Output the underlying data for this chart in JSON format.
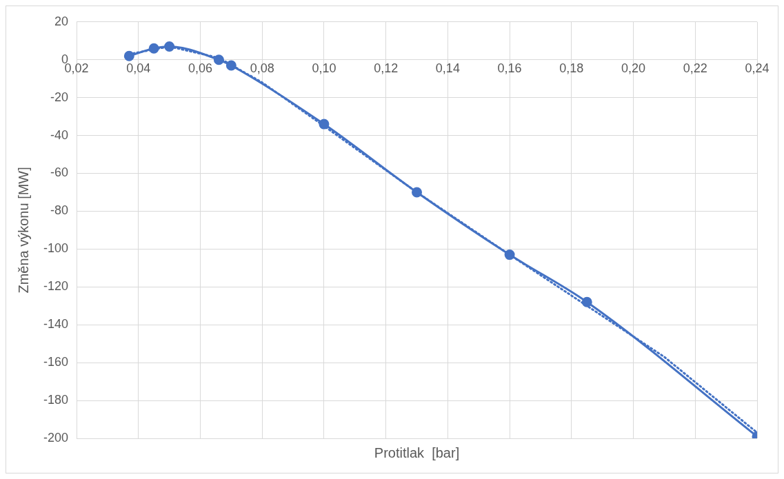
{
  "chart_data": {
    "type": "line",
    "xlabel": "Protitlak  [bar]",
    "ylabel": "Změna výkonu [MW]",
    "xlim": [
      0.02,
      0.24
    ],
    "ylim": [
      -200,
      20
    ],
    "xticks": [
      {
        "value": 0.02,
        "label": "0,02"
      },
      {
        "value": 0.04,
        "label": "0,04"
      },
      {
        "value": 0.06,
        "label": "0,06"
      },
      {
        "value": 0.08,
        "label": "0,08"
      },
      {
        "value": 0.1,
        "label": "0,10"
      },
      {
        "value": 0.12,
        "label": "0,12"
      },
      {
        "value": 0.14,
        "label": "0,14"
      },
      {
        "value": 0.16,
        "label": "0,16"
      },
      {
        "value": 0.18,
        "label": "0,18"
      },
      {
        "value": 0.2,
        "label": "0,20"
      },
      {
        "value": 0.22,
        "label": "0,22"
      },
      {
        "value": 0.24,
        "label": "0,24"
      }
    ],
    "yticks": [
      20,
      0,
      -20,
      -40,
      -60,
      -80,
      -100,
      -120,
      -140,
      -160,
      -180,
      -200
    ],
    "grid": true,
    "legend": false,
    "marker": "circle",
    "line_style": "solid",
    "series": [
      {
        "color": "#4472c4",
        "x": [
          0.037,
          0.045,
          0.05,
          0.066,
          0.07,
          0.1,
          0.13,
          0.16,
          0.185,
          0.24
        ],
        "values": [
          2,
          6,
          7,
          0,
          -3,
          -34,
          -70,
          -103,
          -128,
          -199
        ]
      },
      {
        "type": "line",
        "color": "#4472c4",
        "marker": "none",
        "line_style": "dotted",
        "x": [
          0.037,
          0.05,
          0.066,
          0.08,
          0.1,
          0.13,
          0.16,
          0.185,
          0.21,
          0.24
        ],
        "values": [
          3,
          7,
          1,
          -12,
          -35,
          -70,
          -103,
          -130,
          -157,
          -197
        ]
      }
    ]
  }
}
